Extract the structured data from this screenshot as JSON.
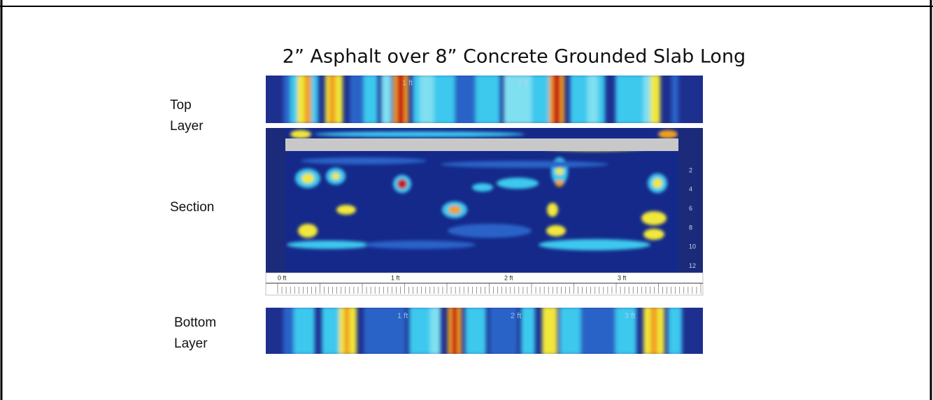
{
  "title": "2” Asphalt over 8” Concrete Grounded Slab Long",
  "labels": {
    "top": [
      "Top",
      "Layer"
    ],
    "section": "Section",
    "bottom": [
      "Bottom",
      "Layer"
    ]
  },
  "top_panel": {
    "markers": [
      "1 ft",
      "2 ft"
    ]
  },
  "section": {
    "depth_labels": [
      2,
      4,
      6,
      8,
      10,
      12
    ],
    "ruler_labels": [
      "0 ft",
      "1 ft",
      "2 ft",
      "3 ft"
    ]
  },
  "bottom_panel": {
    "markers": [
      "1 ft",
      "2 ft",
      "3 ft"
    ]
  }
}
